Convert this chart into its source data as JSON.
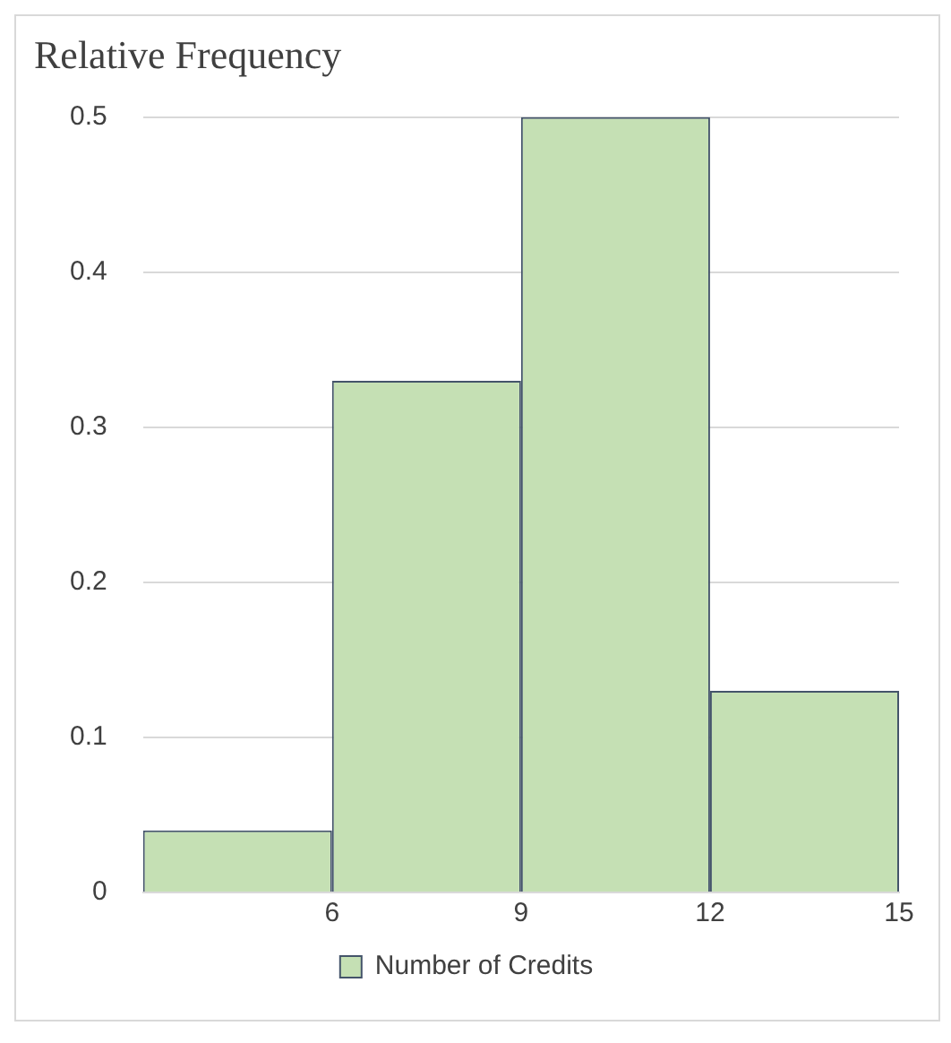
{
  "chart_data": {
    "type": "histogram",
    "title": "Relative Frequency",
    "bins": [
      3,
      6,
      9,
      12,
      15
    ],
    "series": [
      {
        "name": "Number of Credits",
        "color": "#c5e0b4",
        "values": [
          0.04,
          0.33,
          0.5,
          0.13
        ]
      }
    ],
    "xlim": [
      3,
      15
    ],
    "xticks": [
      6,
      9,
      12,
      15
    ],
    "ylim": [
      0,
      0.5
    ],
    "yticks": [
      0,
      0.1,
      0.2,
      0.3,
      0.4,
      0.5
    ],
    "grid": "y",
    "legend": "bottom"
  }
}
